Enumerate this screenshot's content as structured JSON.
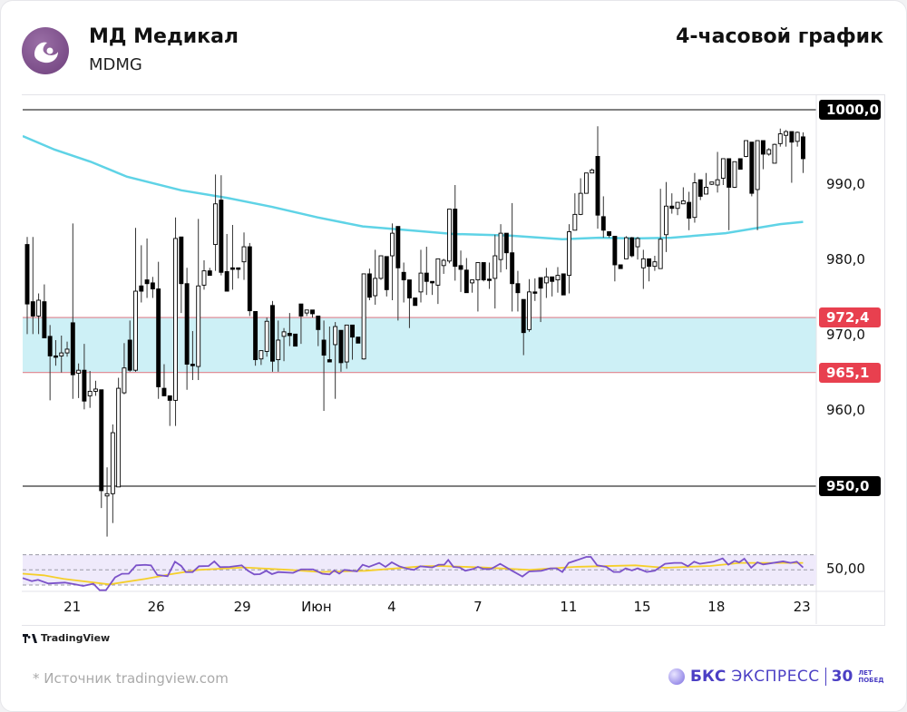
{
  "header": {
    "company": "МД Медикал",
    "ticker": "MDMG",
    "timeframe": "4-часовой график"
  },
  "footer": {
    "source": "* Источник tradingview.com",
    "tradingview": "TradingView",
    "brand_bold": "БКС",
    "brand_light": "ЭКСПРЕСС",
    "brand_num": "30",
    "brand_small_1": "ЛЕТ",
    "brand_small_2": "ПОБЕД"
  },
  "colors": {
    "band": "#cdf0f6",
    "band_border": "#e0828c",
    "level_red": "#e8404f",
    "ma": "#5fd3e6",
    "rsi": "#7b52c9",
    "rsi_ma": "#f5cf2a",
    "rsi_bg": "#efeafb"
  },
  "chart_data": {
    "type": "candlestick",
    "title": "4-часовой график",
    "ylim": [
      942,
      1002
    ],
    "y_ticks": [
      {
        "v": 990,
        "label": "990,0"
      },
      {
        "v": 980,
        "label": "980,0"
      },
      {
        "v": 970,
        "label": "970,0"
      },
      {
        "v": 960,
        "label": "960,0"
      }
    ],
    "levels": [
      {
        "v": 1000,
        "label": "1000,0",
        "color": "#000000"
      },
      {
        "v": 950,
        "label": "950,0",
        "color": "#000000"
      }
    ],
    "zone": {
      "top": 972.4,
      "bottom": 965.1,
      "top_label": "972,4",
      "bottom_label": "965,1"
    },
    "x_ticks": [
      {
        "i": 7.9,
        "label": "21"
      },
      {
        "i": 22.6,
        "label": "26"
      },
      {
        "i": 37.7,
        "label": "29"
      },
      {
        "i": 50.7,
        "label": "Июн"
      },
      {
        "i": 63.9,
        "label": "4"
      },
      {
        "i": 79,
        "label": "7"
      },
      {
        "i": 94.9,
        "label": "11"
      },
      {
        "i": 107.8,
        "label": "15"
      },
      {
        "i": 120.8,
        "label": "18"
      },
      {
        "i": 135.8,
        "label": "23"
      }
    ],
    "ohlc": [
      [
        982.1,
        983.1,
        970.2,
        974.2
      ],
      [
        974.5,
        983.1,
        970.2,
        972.6
      ],
      [
        972.6,
        975.6,
        970.2,
        974.7
      ],
      [
        974.5,
        976.8,
        969.7,
        969.7
      ],
      [
        969.9,
        971.4,
        961.4,
        967.3
      ],
      [
        967.3,
        969.4,
        966,
        967.2
      ],
      [
        967.3,
        970,
        965.1,
        967.7
      ],
      [
        967.7,
        969.2,
        967.2,
        968.2
      ],
      [
        971.7,
        984.9,
        961.6,
        964.8
      ],
      [
        965,
        966.3,
        961.7,
        965.4
      ],
      [
        965.4,
        968.9,
        960.2,
        961.3
      ],
      [
        962,
        965.3,
        960.4,
        962.6
      ],
      [
        962.6,
        964,
        962,
        962.9
      ],
      [
        962.8,
        962.8,
        947.1,
        949.4
      ],
      [
        948.7,
        952.5,
        943.3,
        949
      ],
      [
        949,
        958.2,
        945.1,
        957.1
      ],
      [
        949.9,
        964.4,
        949.9,
        963
      ],
      [
        962.4,
        969,
        962.2,
        965.7
      ],
      [
        969.4,
        972,
        965.2,
        965.4
      ],
      [
        965.4,
        984.3,
        965.2,
        975.9
      ],
      [
        976.6,
        982,
        974.4,
        975.9
      ],
      [
        977.4,
        982.9,
        975,
        976.9
      ],
      [
        977,
        977.8,
        975,
        976.2
      ],
      [
        976.2,
        979.8,
        961.6,
        963.2
      ],
      [
        963,
        966.2,
        962,
        962
      ],
      [
        962,
        962,
        958,
        961.4
      ],
      [
        961.4,
        985.7,
        958,
        982.9
      ],
      [
        983.1,
        983.1,
        973,
        976.9
      ],
      [
        976.9,
        979,
        962.8,
        966.2
      ],
      [
        966.2,
        970.6,
        964.1,
        966
      ],
      [
        965.9,
        985.5,
        964.1,
        976.6
      ],
      [
        976.7,
        980,
        976.1,
        978.6
      ],
      [
        978.6,
        979,
        978,
        978
      ],
      [
        982.1,
        991.4,
        978.6,
        987.5
      ],
      [
        988,
        991.3,
        978,
        978.4
      ],
      [
        978.5,
        983.5,
        975.9,
        975.9
      ],
      [
        979,
        984.7,
        976.1,
        978.8
      ],
      [
        979,
        979,
        977.6,
        978.8
      ],
      [
        979.8,
        983.7,
        977.4,
        981.8
      ],
      [
        981.8,
        982.3,
        972.6,
        973.3
      ],
      [
        973.2,
        973.2,
        966,
        966.8
      ],
      [
        966.9,
        968,
        966.1,
        968
      ],
      [
        967.9,
        972.4,
        967.2,
        971.9
      ],
      [
        974,
        974.6,
        965.2,
        966.6
      ],
      [
        966.8,
        972,
        965.2,
        969.4
      ],
      [
        969.9,
        971,
        966.6,
        970.5
      ],
      [
        970.3,
        973,
        968.6,
        970
      ],
      [
        970.2,
        970.2,
        968.6,
        968.6
      ],
      [
        974.2,
        974.2,
        968.9,
        972.6
      ],
      [
        973,
        973.4,
        972.6,
        973.4
      ],
      [
        973.4,
        973.4,
        972.4,
        972.9
      ],
      [
        972.6,
        972.6,
        968.6,
        970.8
      ],
      [
        969.4,
        972,
        960,
        967.4
      ],
      [
        966.8,
        971.2,
        966.5,
        966.5
      ],
      [
        968.8,
        971.8,
        961.6,
        971.2
      ],
      [
        970.7,
        970.7,
        965.2,
        966.4
      ],
      [
        966.5,
        971.4,
        965.6,
        971.4
      ],
      [
        971.4,
        971.4,
        966.8,
        969.8
      ],
      [
        969.8,
        969.8,
        969,
        969
      ],
      [
        966.9,
        978.2,
        966.8,
        978.2
      ],
      [
        978.2,
        978.9,
        974.7,
        975.1
      ],
      [
        975.3,
        981.4,
        974.1,
        977.6
      ],
      [
        977.6,
        980.6,
        977.4,
        980.6
      ],
      [
        980.5,
        980.5,
        975.2,
        976.1
      ],
      [
        980.6,
        984.9,
        974.7,
        983.6
      ],
      [
        984.5,
        984.5,
        972,
        979
      ],
      [
        978.4,
        979.7,
        974.4,
        977.4
      ],
      [
        977.4,
        977.4,
        971,
        975
      ],
      [
        975,
        975,
        974,
        974
      ],
      [
        975.8,
        981.4,
        974.4,
        978.3
      ],
      [
        978.3,
        981.8,
        975.4,
        977.2
      ],
      [
        977.2,
        977.2,
        975.4,
        977
      ],
      [
        976.7,
        980.2,
        974.2,
        980.2
      ],
      [
        979.3,
        980.2,
        978.2,
        980
      ],
      [
        979.9,
        986.8,
        979.6,
        986.8
      ],
      [
        986.8,
        990,
        977.3,
        979.2
      ],
      [
        979.3,
        981.3,
        975.8,
        978.8
      ],
      [
        978.7,
        980.3,
        975.7,
        975.7
      ],
      [
        977,
        977.4,
        975.7,
        977.4
      ],
      [
        977.4,
        979.7,
        973.2,
        979.7
      ],
      [
        979.7,
        979.7,
        977.2,
        977.4
      ],
      [
        977.5,
        979.7,
        976.2,
        977.4
      ],
      [
        977.6,
        983.4,
        973.6,
        980.6
      ],
      [
        980.1,
        984.8,
        978.4,
        983.6
      ],
      [
        983.6,
        983.6,
        978.8,
        981
      ],
      [
        981,
        987.6,
        973.2,
        976.9
      ],
      [
        976.9,
        978.6,
        973.2,
        975.7
      ],
      [
        974.8,
        974.8,
        967.4,
        970.4
      ],
      [
        970.8,
        977.5,
        970.5,
        975.8
      ],
      [
        975.8,
        977.6,
        974.6,
        975.7
      ],
      [
        977.7,
        977.7,
        971.8,
        976.3
      ],
      [
        977,
        979,
        975,
        977.8
      ],
      [
        977.8,
        977.8,
        975.2,
        977.2
      ],
      [
        977.4,
        979.1,
        975.7,
        978
      ],
      [
        978.2,
        978.2,
        975.4,
        975.4
      ],
      [
        978,
        984.8,
        975.6,
        983.8
      ],
      [
        984,
        988.9,
        984,
        986.1
      ],
      [
        986.1,
        990.9,
        986,
        988.9
      ],
      [
        988.9,
        991.6,
        988.9,
        991.6
      ],
      [
        991.6,
        992.2,
        991.6,
        992
      ],
      [
        993.8,
        997.8,
        984.2,
        986
      ],
      [
        985.8,
        988.5,
        983,
        984
      ],
      [
        983.8,
        983.8,
        983,
        983.3
      ],
      [
        983.2,
        983.2,
        977.2,
        979.4
      ],
      [
        979.4,
        979.4,
        978.9,
        978.9
      ],
      [
        980.2,
        983.2,
        980.2,
        983
      ],
      [
        983,
        983.1,
        980.4,
        980.6
      ],
      [
        981.8,
        983.1,
        980.1,
        982.9
      ],
      [
        979,
        981.4,
        976.2,
        980.2
      ],
      [
        980.2,
        980.2,
        977.2,
        979.2
      ],
      [
        979.2,
        980.6,
        978.6,
        979.8
      ],
      [
        978.9,
        989.5,
        978.9,
        982.8
      ],
      [
        983.4,
        990.4,
        981.1,
        987.2
      ],
      [
        987.2,
        988.9,
        986.2,
        986.9
      ],
      [
        986.9,
        987.7,
        986,
        987.7
      ],
      [
        987.5,
        989.7,
        987.5,
        987.9
      ],
      [
        987.7,
        989.1,
        984,
        985.6
      ],
      [
        985.7,
        991.6,
        985,
        990.3
      ],
      [
        990.7,
        990.7,
        988,
        988.5
      ],
      [
        988.8,
        991.6,
        988.8,
        989.7
      ],
      [
        990.1,
        990.4,
        990,
        990.4
      ],
      [
        990,
        994.4,
        989,
        990.7
      ],
      [
        990.9,
        993.5,
        990,
        993.5
      ],
      [
        993.5,
        993.5,
        984,
        989.7
      ],
      [
        989.7,
        993.1,
        989.6,
        993.1
      ],
      [
        993.5,
        993.5,
        992.1,
        992.1
      ],
      [
        993.8,
        995.9,
        993.7,
        995.9
      ],
      [
        995.7,
        995.7,
        988.5,
        988.9
      ],
      [
        989.4,
        995.9,
        984,
        995.9
      ],
      [
        995.9,
        995.9,
        992.1,
        994.1
      ],
      [
        994.1,
        994.9,
        993.9,
        994.7
      ],
      [
        992.9,
        995.5,
        992.9,
        995.4
      ],
      [
        995.5,
        997.5,
        995.1,
        996.8
      ],
      [
        996.6,
        997.3,
        995.1,
        997.1
      ],
      [
        997.1,
        997.1,
        990.3,
        995.7
      ],
      [
        995.8,
        997.1,
        995.1,
        997
      ],
      [
        996.4,
        997,
        991.6,
        993.5
      ]
    ],
    "ma_series": {
      "name": "MA",
      "points": [
        [
          -0.8,
          996.5
        ],
        [
          4.8,
          994.7
        ],
        [
          11.1,
          993.1
        ],
        [
          17.5,
          991.1
        ],
        [
          27,
          989.3
        ],
        [
          35,
          988.3
        ],
        [
          42.9,
          987.1
        ],
        [
          50.9,
          985.7
        ],
        [
          58.8,
          984.5
        ],
        [
          68.4,
          983.9
        ],
        [
          74.7,
          983.5
        ],
        [
          84.3,
          983.3
        ],
        [
          93.8,
          982.8
        ],
        [
          100.2,
          983
        ],
        [
          106.5,
          982.9
        ],
        [
          112.9,
          983
        ],
        [
          122.4,
          983.6
        ],
        [
          132,
          984.8
        ],
        [
          136,
          985.1
        ]
      ]
    },
    "rsi": {
      "label": "50,00",
      "levels": [
        70,
        50,
        30
      ],
      "ylim": [
        20,
        80
      ],
      "series": [
        [
          -0.8,
          39.2
        ],
        [
          0.8,
          35.1
        ],
        [
          1.9,
          36.8
        ],
        [
          3.7,
          32
        ],
        [
          6.6,
          33.2
        ],
        [
          8.4,
          30.8
        ],
        [
          9.8,
          28.8
        ],
        [
          11.6,
          31.6
        ],
        [
          12.7,
          23.1
        ],
        [
          13.8,
          23.1
        ],
        [
          15.4,
          40
        ],
        [
          16.6,
          44.8
        ],
        [
          17.8,
          45
        ],
        [
          19.1,
          56
        ],
        [
          20.7,
          56.7
        ],
        [
          21.7,
          56
        ],
        [
          22.8,
          43.2
        ],
        [
          24.6,
          41.6
        ],
        [
          25.9,
          60.8
        ],
        [
          27,
          55.2
        ],
        [
          27.8,
          47.1
        ],
        [
          29,
          47.1
        ],
        [
          30.1,
          54.8
        ],
        [
          31.8,
          55.2
        ],
        [
          32.8,
          61.2
        ],
        [
          33.8,
          53.6
        ],
        [
          35.5,
          54
        ],
        [
          37.6,
          56
        ],
        [
          38.7,
          48.8
        ],
        [
          39.8,
          44
        ],
        [
          40.8,
          44.4
        ],
        [
          41.9,
          48.8
        ],
        [
          42.9,
          44.4
        ],
        [
          44,
          47.1
        ],
        [
          46.6,
          46
        ],
        [
          48,
          50.7
        ],
        [
          50.1,
          50.7
        ],
        [
          51.7,
          45
        ],
        [
          53,
          44
        ],
        [
          53.8,
          49.2
        ],
        [
          54.7,
          45
        ],
        [
          55.6,
          50
        ],
        [
          57.8,
          48
        ],
        [
          58.8,
          56.8
        ],
        [
          59.9,
          54
        ],
        [
          61.7,
          59.2
        ],
        [
          62.8,
          54
        ],
        [
          63.9,
          60
        ],
        [
          65.2,
          54.8
        ],
        [
          66.8,
          51.2
        ],
        [
          67.8,
          50
        ],
        [
          68.9,
          54.8
        ],
        [
          71,
          53.2
        ],
        [
          72.1,
          56.8
        ],
        [
          73.1,
          56.8
        ],
        [
          73.8,
          63.2
        ],
        [
          74.7,
          54
        ],
        [
          75.8,
          53.2
        ],
        [
          76.8,
          48.8
        ],
        [
          78.2,
          51.2
        ],
        [
          79,
          54
        ],
        [
          80,
          51.2
        ],
        [
          81.3,
          51.2
        ],
        [
          82.9,
          58
        ],
        [
          85,
          48.8
        ],
        [
          86.8,
          41.2
        ],
        [
          88,
          48
        ],
        [
          90.1,
          48.8
        ],
        [
          91.7,
          52
        ],
        [
          92.8,
          52
        ],
        [
          93.8,
          47.2
        ],
        [
          94.9,
          59.2
        ],
        [
          96.5,
          63.2
        ],
        [
          98,
          67.2
        ],
        [
          98.8,
          67.2
        ],
        [
          99.9,
          56
        ],
        [
          101.5,
          54
        ],
        [
          102.8,
          47.2
        ],
        [
          103.9,
          47.2
        ],
        [
          104.9,
          52
        ],
        [
          106,
          49.2
        ],
        [
          107,
          52
        ],
        [
          108.6,
          47.2
        ],
        [
          110,
          48.8
        ],
        [
          111.8,
          58
        ],
        [
          113.4,
          59.2
        ],
        [
          114.7,
          59.2
        ],
        [
          115.8,
          54.8
        ],
        [
          116.9,
          60.8
        ],
        [
          117.9,
          58
        ],
        [
          120.3,
          60.8
        ],
        [
          121.9,
          65.2
        ],
        [
          122.9,
          56.8
        ],
        [
          124,
          62
        ],
        [
          124.8,
          60
        ],
        [
          125.7,
          64.8
        ],
        [
          126.9,
          52.8
        ],
        [
          128,
          60
        ],
        [
          129,
          57.2
        ],
        [
          132.5,
          61.2
        ],
        [
          133.8,
          59.2
        ],
        [
          134.9,
          60.8
        ],
        [
          136,
          53.2
        ]
      ],
      "ma": [
        [
          -0.8,
          45
        ],
        [
          2.9,
          42.8
        ],
        [
          6.4,
          38
        ],
        [
          14.4,
          30.8
        ],
        [
          20.7,
          38
        ],
        [
          25,
          44
        ],
        [
          30,
          50
        ],
        [
          38,
          53.2
        ],
        [
          46,
          50
        ],
        [
          51.3,
          47.2
        ],
        [
          59.3,
          48.8
        ],
        [
          69.3,
          54.8
        ],
        [
          72,
          55.2
        ],
        [
          80,
          53.2
        ],
        [
          88,
          50
        ],
        [
          96,
          54
        ],
        [
          106.6,
          56
        ],
        [
          111.8,
          52.8
        ],
        [
          119.7,
          55.2
        ],
        [
          125,
          59.2
        ],
        [
          136,
          59.2
        ]
      ]
    }
  }
}
